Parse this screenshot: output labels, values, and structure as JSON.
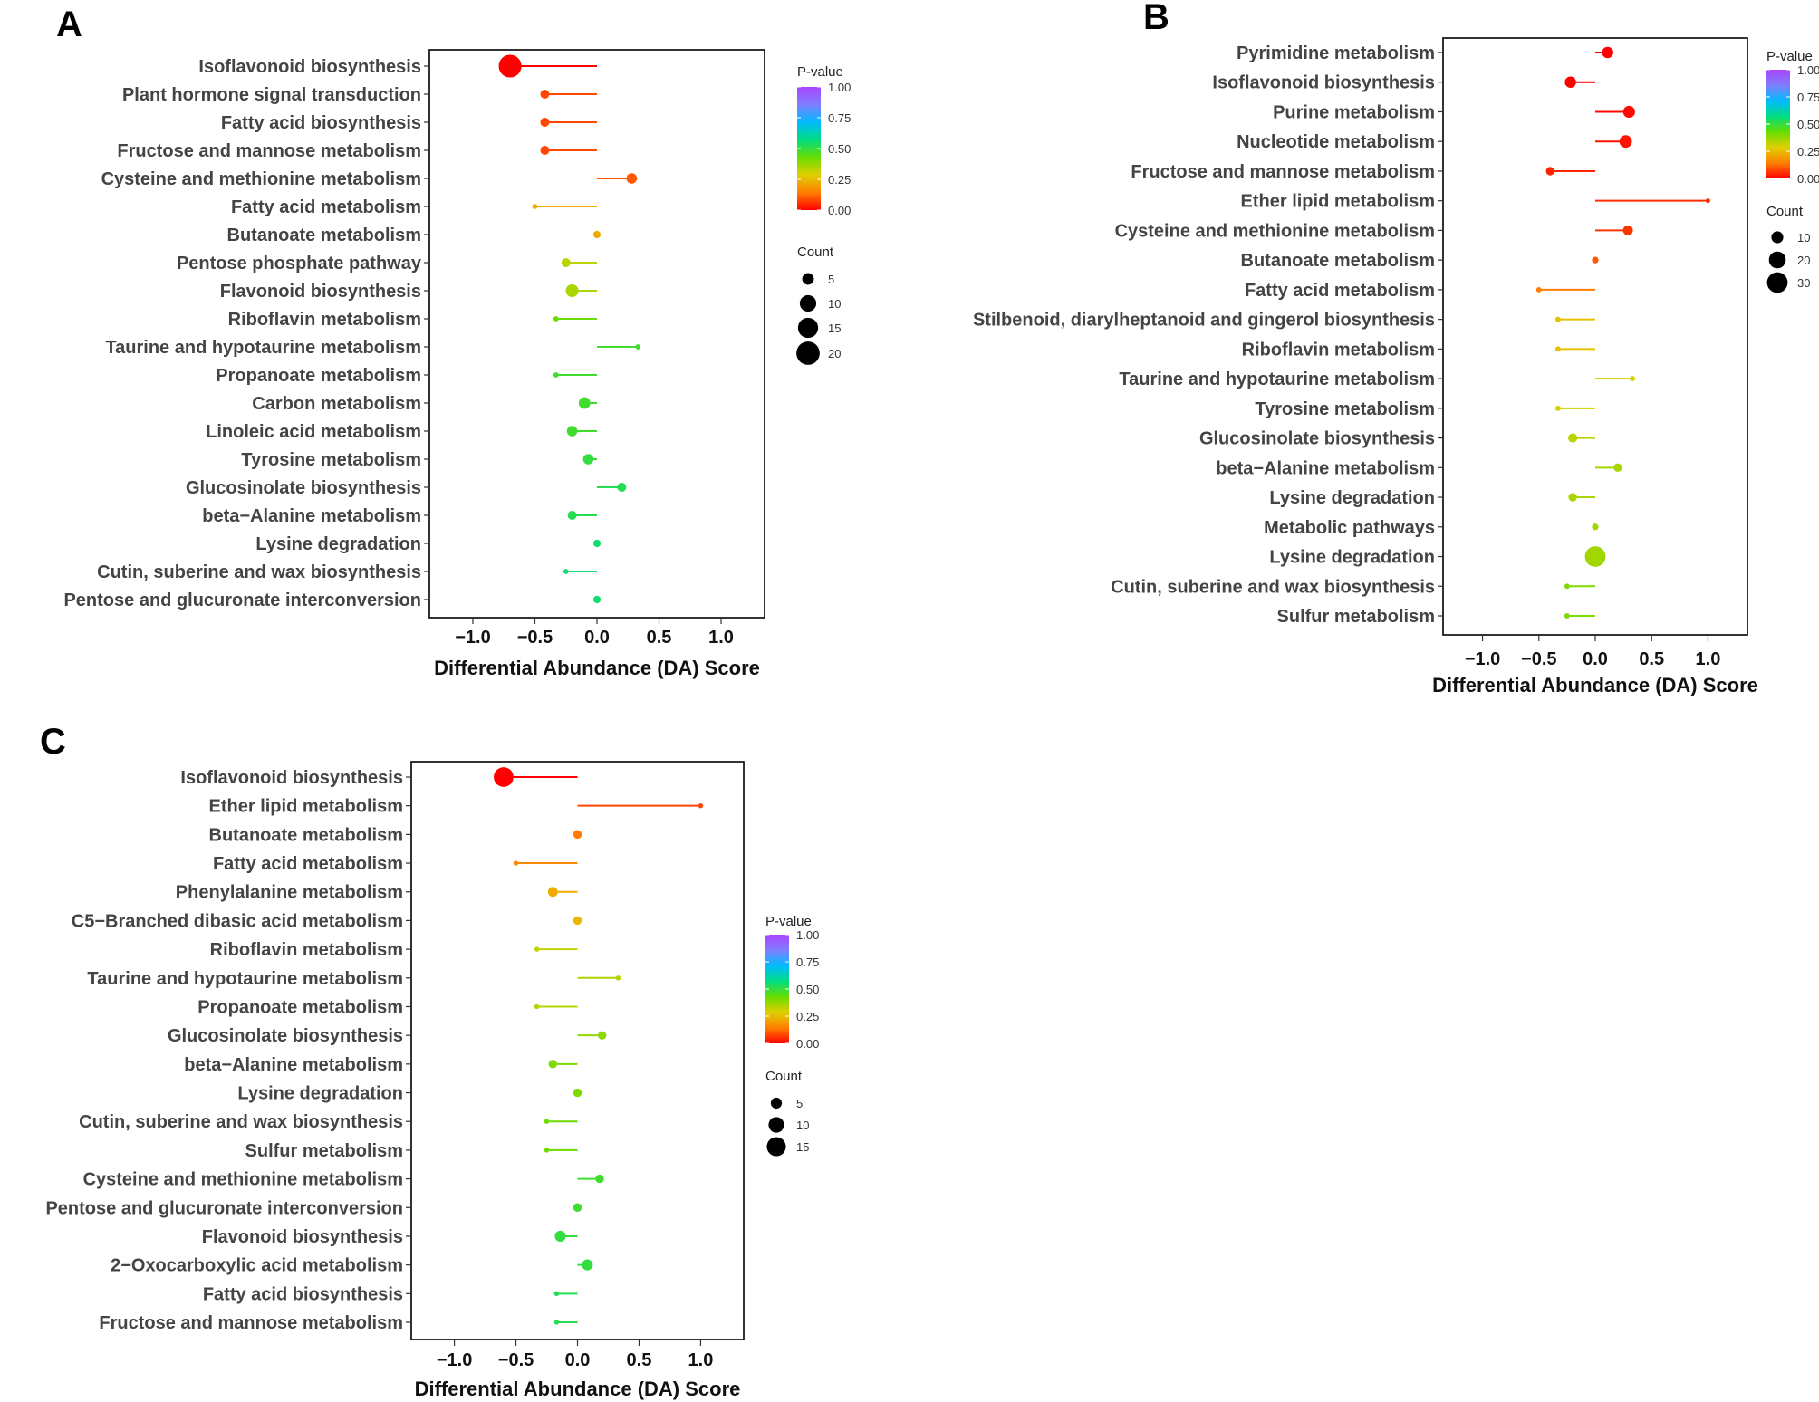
{
  "legend": {
    "pvalue_title": "P-value",
    "pvalue_ticks": [
      "1.00",
      "0.75",
      "0.50",
      "0.25",
      "0.00"
    ],
    "count_title": "Count"
  },
  "colors": {
    "p_gradient": [
      "#ff0000",
      "#ff7f00",
      "#dfd000",
      "#66dd00",
      "#00dd80",
      "#00bbff",
      "#7f7fff",
      "#aa44ff"
    ],
    "frame": "#000000",
    "dot_legend": "#000000"
  },
  "chart_data": [
    {
      "panel": "A",
      "type": "lollipop",
      "xlabel": "Differential Abundance (DA) Score",
      "xlim": [
        -1.35,
        1.35
      ],
      "x_ticks": [
        -1.0,
        -0.5,
        0.0,
        0.5,
        1.0
      ],
      "x_tick_labels": [
        "−1.0",
        "−0.5",
        "0.0",
        "0.5",
        "1.0"
      ],
      "count_legend": [
        5,
        10,
        15,
        20
      ],
      "count_legend_labels": [
        "5",
        "10",
        "15",
        "20"
      ],
      "pathways": [
        {
          "name": "Isoflavonoid biosynthesis",
          "da": -0.7,
          "pvalue": 0.0,
          "count": 19
        },
        {
          "name": "Plant hormone signal transduction",
          "da": -0.42,
          "pvalue": 0.08,
          "count": 3
        },
        {
          "name": "Fatty acid biosynthesis",
          "da": -0.42,
          "pvalue": 0.08,
          "count": 3
        },
        {
          "name": "Fructose and mannose metabolism",
          "da": -0.42,
          "pvalue": 0.08,
          "count": 3
        },
        {
          "name": "Cysteine and methionine metabolism",
          "da": 0.28,
          "pvalue": 0.1,
          "count": 4
        },
        {
          "name": "Fatty acid metabolism",
          "da": -0.5,
          "pvalue": 0.22,
          "count": 1
        },
        {
          "name": "Butanoate metabolism",
          "da": 0.0,
          "pvalue": 0.22,
          "count": 2
        },
        {
          "name": "Pentose phosphate pathway",
          "da": -0.25,
          "pvalue": 0.33,
          "count": 3
        },
        {
          "name": "Flavonoid biosynthesis",
          "da": -0.2,
          "pvalue": 0.35,
          "count": 6
        },
        {
          "name": "Riboflavin metabolism",
          "da": -0.33,
          "pvalue": 0.42,
          "count": 1
        },
        {
          "name": "Taurine and hypotaurine metabolism",
          "da": 0.33,
          "pvalue": 0.48,
          "count": 1
        },
        {
          "name": "Propanoate metabolism",
          "da": -0.33,
          "pvalue": 0.48,
          "count": 1
        },
        {
          "name": "Carbon metabolism",
          "da": -0.1,
          "pvalue": 0.48,
          "count": 5
        },
        {
          "name": "Linoleic acid metabolism",
          "da": -0.2,
          "pvalue": 0.48,
          "count": 4
        },
        {
          "name": "Tyrosine metabolism",
          "da": -0.07,
          "pvalue": 0.5,
          "count": 4
        },
        {
          "name": "Glucosinolate biosynthesis",
          "da": 0.2,
          "pvalue": 0.52,
          "count": 3
        },
        {
          "name": "beta−Alanine metabolism",
          "da": -0.2,
          "pvalue": 0.52,
          "count": 3
        },
        {
          "name": "Lysine degradation",
          "da": 0.0,
          "pvalue": 0.55,
          "count": 2
        },
        {
          "name": "Cutin, suberine and wax biosynthesis",
          "da": -0.25,
          "pvalue": 0.55,
          "count": 1
        },
        {
          "name": "Pentose and glucuronate interconversion",
          "da": 0.0,
          "pvalue": 0.55,
          "count": 2
        }
      ]
    },
    {
      "panel": "B",
      "type": "lollipop",
      "xlabel": "Differential Abundance (DA) Score",
      "xlim": [
        -1.35,
        1.35
      ],
      "x_ticks": [
        -1.0,
        -0.5,
        0.0,
        0.5,
        1.0
      ],
      "x_tick_labels": [
        "−1.0",
        "−0.5",
        "0.0",
        "0.5",
        "1.0"
      ],
      "count_legend": [
        10,
        20,
        30
      ],
      "count_legend_labels": [
        "10",
        "20",
        "30"
      ],
      "pathways": [
        {
          "name": "Pyrimidine metabolism",
          "da": 0.11,
          "pvalue": 0.0,
          "count": 9
        },
        {
          "name": "Isoflavonoid biosynthesis",
          "da": -0.22,
          "pvalue": 0.0,
          "count": 9
        },
        {
          "name": "Purine metabolism",
          "da": 0.3,
          "pvalue": 0.01,
          "count": 10
        },
        {
          "name": "Nucleotide metabolism",
          "da": 0.27,
          "pvalue": 0.02,
          "count": 11
        },
        {
          "name": "Fructose and mannose metabolism",
          "da": -0.4,
          "pvalue": 0.04,
          "count": 5
        },
        {
          "name": "Ether lipid metabolism",
          "da": 1.0,
          "pvalue": 0.05,
          "count": 1
        },
        {
          "name": "Cysteine and methionine metabolism",
          "da": 0.29,
          "pvalue": 0.06,
          "count": 7
        },
        {
          "name": "Butanoate metabolism",
          "da": 0.0,
          "pvalue": 0.1,
          "count": 3
        },
        {
          "name": "Fatty acid metabolism",
          "da": -0.5,
          "pvalue": 0.14,
          "count": 2
        },
        {
          "name": "Stilbenoid, diarylheptanoid and gingerol biosynthesis",
          "da": -0.33,
          "pvalue": 0.26,
          "count": 2
        },
        {
          "name": "Riboflavin metabolism",
          "da": -0.33,
          "pvalue": 0.26,
          "count": 2
        },
        {
          "name": "Taurine and hypotaurine metabolism",
          "da": 0.33,
          "pvalue": 0.3,
          "count": 2
        },
        {
          "name": "Tyrosine metabolism",
          "da": -0.33,
          "pvalue": 0.3,
          "count": 2
        },
        {
          "name": "Glucosinolate biosynthesis",
          "da": -0.2,
          "pvalue": 0.33,
          "count": 6
        },
        {
          "name": "beta−Alanine metabolism",
          "da": 0.2,
          "pvalue": 0.35,
          "count": 5
        },
        {
          "name": "Lysine degradation",
          "da": -0.2,
          "pvalue": 0.35,
          "count": 5
        },
        {
          "name": "Metabolic pathways",
          "da": 0.0,
          "pvalue": 0.36,
          "count": 3
        },
        {
          "name": "Lysine degradation",
          "da": 0.0,
          "pvalue": 0.36,
          "count": 30
        },
        {
          "name": "Cutin, suberine and wax biosynthesis",
          "da": -0.25,
          "pvalue": 0.4,
          "count": 2
        },
        {
          "name": "Sulfur metabolism",
          "da": -0.25,
          "pvalue": 0.4,
          "count": 2
        }
      ]
    },
    {
      "panel": "C",
      "type": "lollipop",
      "xlabel": "Differential Abundance (DA) Score",
      "xlim": [
        -1.35,
        1.35
      ],
      "x_ticks": [
        -1.0,
        -0.5,
        0.0,
        0.5,
        1.0
      ],
      "x_tick_labels": [
        "−1.0",
        "−0.5",
        "0.0",
        "0.5",
        "1.0"
      ],
      "count_legend": [
        5,
        10,
        15
      ],
      "count_legend_labels": [
        "5",
        "10",
        "15"
      ],
      "pathways": [
        {
          "name": "Isoflavonoid biosynthesis",
          "da": -0.6,
          "pvalue": 0.0,
          "count": 16
        },
        {
          "name": "Ether lipid metabolism",
          "da": 1.0,
          "pvalue": 0.08,
          "count": 1
        },
        {
          "name": "Butanoate metabolism",
          "da": 0.0,
          "pvalue": 0.14,
          "count": 3
        },
        {
          "name": "Fatty acid metabolism",
          "da": -0.5,
          "pvalue": 0.16,
          "count": 1
        },
        {
          "name": "Phenylalanine metabolism",
          "da": -0.2,
          "pvalue": 0.22,
          "count": 4
        },
        {
          "name": "C5−Branched dibasic acid metabolism",
          "da": 0.0,
          "pvalue": 0.24,
          "count": 3
        },
        {
          "name": "Riboflavin metabolism",
          "da": -0.33,
          "pvalue": 0.32,
          "count": 1
        },
        {
          "name": "Taurine and hypotaurine metabolism",
          "da": 0.33,
          "pvalue": 0.34,
          "count": 1
        },
        {
          "name": "Propanoate metabolism",
          "da": -0.33,
          "pvalue": 0.34,
          "count": 1
        },
        {
          "name": "Glucosinolate biosynthesis",
          "da": 0.2,
          "pvalue": 0.38,
          "count": 3
        },
        {
          "name": "beta−Alanine metabolism",
          "da": -0.2,
          "pvalue": 0.4,
          "count": 3
        },
        {
          "name": "Lysine degradation",
          "da": 0.0,
          "pvalue": 0.4,
          "count": 3
        },
        {
          "name": "Cutin, suberine and wax biosynthesis",
          "da": -0.25,
          "pvalue": 0.42,
          "count": 1
        },
        {
          "name": "Sulfur metabolism",
          "da": -0.25,
          "pvalue": 0.42,
          "count": 1
        },
        {
          "name": "Cysteine and methionine metabolism",
          "da": 0.18,
          "pvalue": 0.48,
          "count": 3
        },
        {
          "name": "Pentose and glucuronate interconversion",
          "da": 0.0,
          "pvalue": 0.48,
          "count": 3
        },
        {
          "name": "Flavonoid biosynthesis",
          "da": -0.14,
          "pvalue": 0.5,
          "count": 5
        },
        {
          "name": "2−Oxocarboxylic acid metabolism",
          "da": 0.08,
          "pvalue": 0.5,
          "count": 5
        },
        {
          "name": "Fatty acid biosynthesis",
          "da": -0.17,
          "pvalue": 0.52,
          "count": 1
        },
        {
          "name": "Fructose and mannose metabolism",
          "da": -0.17,
          "pvalue": 0.52,
          "count": 1
        }
      ]
    }
  ]
}
